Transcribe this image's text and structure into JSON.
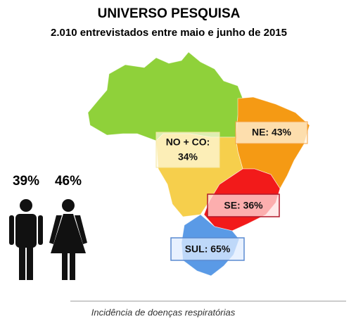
{
  "header": {
    "title": "UNIVERSO PESQUISA",
    "subtitle": "2.010 entrevistados entre maio e junho de 2015"
  },
  "gender": [
    {
      "label": "39%"
    },
    {
      "label": "46%"
    }
  ],
  "regions": [
    {
      "lines": [
        "NO + CO:",
        "34%"
      ]
    },
    {
      "lines": [
        "NE: 43%"
      ]
    },
    {
      "lines": [
        "SE: 36%"
      ]
    },
    {
      "lines": [
        "SUL: 65%"
      ]
    }
  ],
  "caption": "Incidência de doenças respiratórias"
}
